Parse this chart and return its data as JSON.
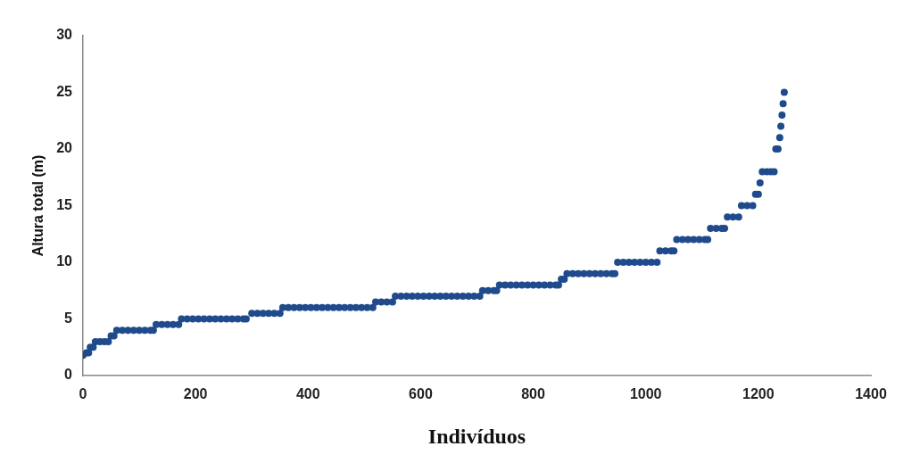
{
  "chart_data": {
    "type": "scatter",
    "xlabel": "Indivíduos",
    "ylabel": "Altura total (m)",
    "xlim": [
      0,
      1400
    ],
    "xticks": [
      0,
      200,
      400,
      600,
      800,
      1000,
      1200,
      1400
    ],
    "ylim": [
      0,
      30
    ],
    "yticks": [
      0,
      5,
      10,
      15,
      20,
      25,
      30
    ],
    "grid": false,
    "legend": false,
    "marker": "circle",
    "series": [
      {
        "color": "#1f4a8c",
        "x": [
          0,
          6,
          10,
          13,
          18,
          22,
          30,
          38,
          45,
          50,
          55,
          60,
          70,
          80,
          90,
          100,
          110,
          120,
          125,
          130,
          140,
          150,
          160,
          170,
          175,
          185,
          195,
          205,
          215,
          225,
          235,
          245,
          255,
          265,
          275,
          285,
          290,
          300,
          310,
          320,
          330,
          340,
          350,
          355,
          365,
          375,
          385,
          395,
          405,
          415,
          425,
          435,
          445,
          455,
          465,
          475,
          485,
          495,
          505,
          515,
          520,
          530,
          540,
          550,
          555,
          565,
          575,
          585,
          595,
          605,
          615,
          625,
          635,
          645,
          655,
          665,
          675,
          685,
          695,
          705,
          710,
          720,
          730,
          735,
          740,
          750,
          760,
          770,
          780,
          790,
          800,
          810,
          820,
          830,
          840,
          845,
          850,
          855,
          860,
          870,
          880,
          890,
          900,
          910,
          920,
          930,
          940,
          945,
          950,
          960,
          970,
          980,
          990,
          1000,
          1010,
          1020,
          1025,
          1035,
          1045,
          1050,
          1055,
          1065,
          1075,
          1085,
          1095,
          1105,
          1110,
          1115,
          1125,
          1135,
          1140,
          1145,
          1155,
          1165,
          1170,
          1180,
          1190,
          1195,
          1200,
          1203,
          1207,
          1215,
          1222,
          1228,
          1231,
          1235,
          1238,
          1240,
          1242,
          1244,
          1246
        ],
        "values": [
          1.8,
          2,
          2,
          2.5,
          2.5,
          3,
          3,
          3,
          3,
          3.5,
          3.5,
          4,
          4,
          4,
          4,
          4,
          4,
          4,
          4,
          4.5,
          4.5,
          4.5,
          4.5,
          4.5,
          5,
          5,
          5,
          5,
          5,
          5,
          5,
          5,
          5,
          5,
          5,
          5,
          5,
          5.5,
          5.5,
          5.5,
          5.5,
          5.5,
          5.5,
          6,
          6,
          6,
          6,
          6,
          6,
          6,
          6,
          6,
          6,
          6,
          6,
          6,
          6,
          6,
          6,
          6,
          6.5,
          6.5,
          6.5,
          6.5,
          7,
          7,
          7,
          7,
          7,
          7,
          7,
          7,
          7,
          7,
          7,
          7,
          7,
          7,
          7,
          7,
          7.5,
          7.5,
          7.5,
          7.5,
          8,
          8,
          8,
          8,
          8,
          8,
          8,
          8,
          8,
          8,
          8,
          8,
          8.5,
          8.5,
          9,
          9,
          9,
          9,
          9,
          9,
          9,
          9,
          9,
          9,
          10,
          10,
          10,
          10,
          10,
          10,
          10,
          10,
          11,
          11,
          11,
          11,
          12,
          12,
          12,
          12,
          12,
          12,
          12,
          13,
          13,
          13,
          13,
          14,
          14,
          14,
          15,
          15,
          15,
          16,
          16,
          17,
          18,
          18,
          18,
          18,
          20,
          20,
          21,
          22,
          23,
          24,
          25
        ]
      }
    ]
  }
}
